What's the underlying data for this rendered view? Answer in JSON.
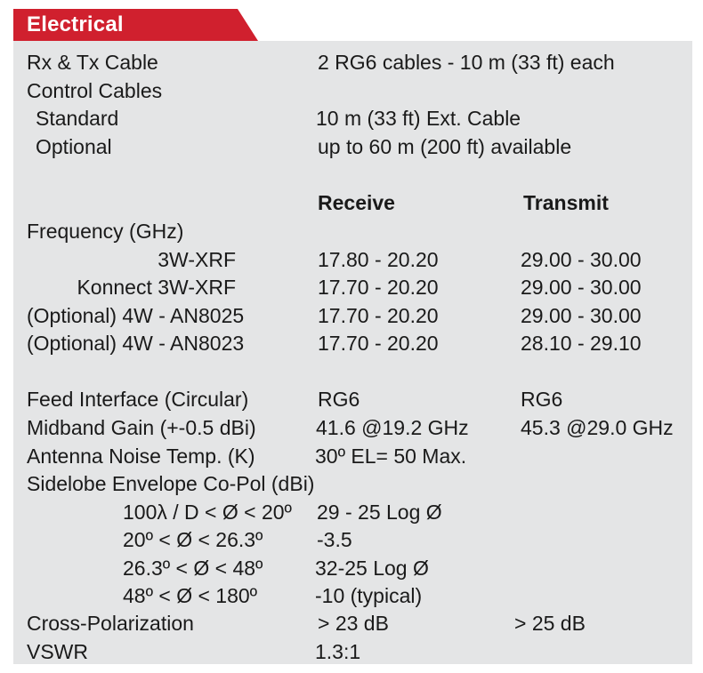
{
  "section": {
    "title": "Electrical",
    "accent_color": "#d0202e",
    "panel_color": "#e4e5e6"
  },
  "cables": {
    "rxtx": {
      "label": "Rx & Tx Cable",
      "value": "2 RG6 cables - 10 m (33 ft) each"
    },
    "control_label": "Control Cables",
    "standard": {
      "label": "Standard",
      "value": "10 m (33 ft) Ext. Cable"
    },
    "optional": {
      "label": "Optional",
      "value": "up to 60 m (200 ft) available"
    }
  },
  "headers": {
    "receive": "Receive",
    "transmit": "Transmit"
  },
  "frequency": {
    "label": "Frequency  (GHz)",
    "rows": [
      {
        "label": "3W-XRF",
        "receive": "17.80 - 20.20",
        "transmit": "29.00 - 30.00"
      },
      {
        "label": "Konnect 3W-XRF",
        "receive": "17.70 - 20.20",
        "transmit": "29.00 - 30.00"
      },
      {
        "label": "(Optional) 4W - AN8025",
        "receive": "17.70 - 20.20",
        "transmit": "29.00 - 30.00"
      },
      {
        "label": "(Optional) 4W - AN8023",
        "receive": "17.70 - 20.20",
        "transmit": "28.10 - 29.10"
      }
    ]
  },
  "specs": {
    "feed": {
      "label": "Feed Interface (Circular)",
      "receive": "RG6",
      "transmit": "RG6"
    },
    "gain": {
      "label": "Midband Gain (+-0.5 dBi)",
      "receive": "41.6 @19.2 GHz",
      "transmit": "45.3 @29.0 GHz"
    },
    "noise": {
      "label": "Antenna Noise Temp. (K)",
      "receive": "30º EL= 50 Max."
    },
    "sidelobe_label": "Sidelobe Envelope  Co-Pol (dBi)",
    "sidelobe": [
      {
        "label": "100λ / D < Ø < 20º",
        "value": "29 - 25 Log Ø"
      },
      {
        "label": "20º < Ø < 26.3º",
        "value": "-3.5"
      },
      {
        "label": "26.3º < Ø < 48º",
        "value": "32-25 Log Ø"
      },
      {
        "label": "48º < Ø < 180º",
        "value": "-10 (typical)"
      }
    ],
    "xpol": {
      "label": "Cross-Polarization",
      "receive": "> 23 dB",
      "transmit": "> 25 dB"
    },
    "vswr": {
      "label": "VSWR",
      "value": "1.3:1"
    }
  }
}
